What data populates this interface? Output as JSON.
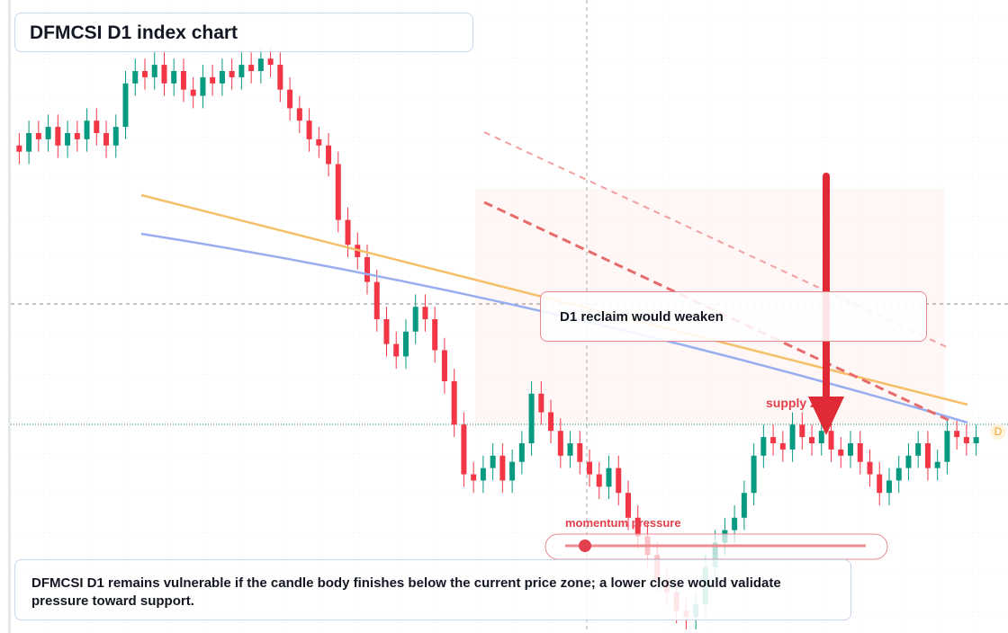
{
  "chart_data": {
    "type": "candlestick",
    "title": "DFMCSI D1 index chart",
    "open": [
      78,
      77,
      80,
      79,
      81,
      78,
      80,
      79,
      82,
      80,
      78,
      81,
      88,
      90,
      89,
      91,
      88,
      90,
      87,
      86,
      89,
      88,
      90,
      89,
      91,
      90,
      92,
      91,
      87,
      84,
      82,
      79,
      78,
      75,
      66,
      62,
      60,
      56,
      50,
      46,
      44,
      48,
      52,
      50,
      45,
      40,
      33,
      25,
      24,
      26,
      28,
      24,
      27,
      30,
      38,
      35,
      32,
      28,
      30,
      27,
      25,
      23,
      26,
      22,
      18,
      15,
      12,
      8,
      6,
      3,
      2,
      4,
      10,
      14,
      16,
      18,
      22,
      28,
      31,
      30,
      29,
      33,
      31,
      30,
      32,
      29,
      28,
      30,
      27,
      25,
      22,
      24,
      26,
      28,
      30,
      26,
      27,
      32,
      31,
      30
    ],
    "high": [
      80,
      82,
      82,
      83,
      83,
      82,
      82,
      84,
      84,
      82,
      83,
      90,
      92,
      92,
      93,
      93,
      92,
      92,
      89,
      91,
      91,
      92,
      92,
      93,
      93,
      94,
      94,
      93,
      89,
      86,
      84,
      81,
      80,
      77,
      68,
      64,
      62,
      58,
      52,
      48,
      50,
      54,
      54,
      52,
      47,
      42,
      35,
      27,
      28,
      30,
      30,
      29,
      32,
      40,
      40,
      37,
      34,
      32,
      32,
      29,
      27,
      28,
      28,
      24,
      20,
      17,
      14,
      10,
      8,
      5,
      6,
      12,
      16,
      18,
      20,
      24,
      30,
      33,
      33,
      32,
      35,
      35,
      33,
      34,
      34,
      31,
      32,
      32,
      29,
      27,
      26,
      28,
      30,
      32,
      32,
      29,
      34,
      34,
      33,
      33
    ],
    "low": [
      75,
      75,
      77,
      77,
      76,
      76,
      77,
      77,
      78,
      76,
      76,
      79,
      86,
      87,
      87,
      86,
      86,
      85,
      84,
      84,
      86,
      86,
      87,
      87,
      88,
      88,
      89,
      85,
      82,
      80,
      77,
      76,
      73,
      64,
      60,
      58,
      54,
      48,
      44,
      42,
      42,
      46,
      48,
      43,
      38,
      31,
      23,
      22,
      22,
      24,
      22,
      22,
      25,
      28,
      33,
      30,
      26,
      26,
      25,
      23,
      21,
      21,
      20,
      16,
      13,
      10,
      6,
      4,
      1,
      0,
      0,
      2,
      8,
      12,
      14,
      16,
      20,
      26,
      28,
      27,
      27,
      29,
      28,
      28,
      27,
      26,
      26,
      25,
      23,
      20,
      20,
      22,
      24,
      26,
      24,
      24,
      25,
      29,
      28,
      28
    ],
    "close": [
      77,
      80,
      79,
      81,
      78,
      80,
      79,
      82,
      80,
      78,
      81,
      88,
      90,
      89,
      91,
      88,
      90,
      87,
      86,
      89,
      88,
      90,
      89,
      91,
      90,
      92,
      91,
      87,
      84,
      82,
      79,
      78,
      75,
      66,
      62,
      60,
      56,
      50,
      46,
      44,
      48,
      52,
      50,
      45,
      40,
      33,
      25,
      24,
      26,
      28,
      24,
      27,
      30,
      38,
      35,
      32,
      28,
      30,
      27,
      25,
      23,
      26,
      22,
      18,
      15,
      12,
      8,
      6,
      3,
      2,
      4,
      10,
      14,
      16,
      18,
      22,
      28,
      31,
      30,
      29,
      33,
      31,
      30,
      32,
      29,
      28,
      30,
      27,
      25,
      22,
      24,
      26,
      28,
      30,
      26,
      27,
      32,
      31,
      30,
      31
    ],
    "ylim": [
      0,
      100
    ],
    "up_color": "#089981",
    "down_color": "#f23645",
    "annotations": {
      "callout": "D1 reclaim would weaken",
      "zone_label": "supply zone",
      "momentum_label": "momentum pressure",
      "summary": "DFMCSI D1 remains vulnerable if the candle body finishes below the current price zone; a lower close would validate pressure toward support.",
      "price_tag": "D"
    }
  }
}
